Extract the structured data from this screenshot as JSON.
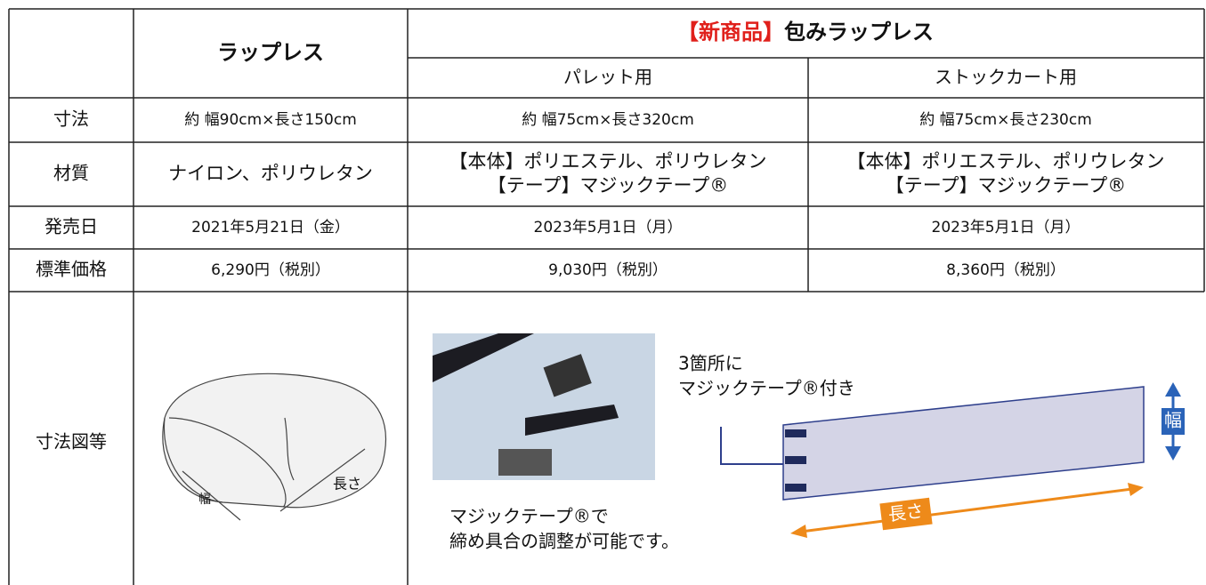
{
  "table": {
    "header": {
      "product1": "ラップレス",
      "new_tag": "【新商品】",
      "product2": "包みラップレス",
      "variant1": "パレット用",
      "variant2": "ストックカート用"
    },
    "rows": [
      {
        "label": "寸法",
        "cells": [
          "約 幅90cm×長さ150cm",
          "約 幅75cm×長さ320cm",
          "約 幅75cm×長さ230cm"
        ]
      },
      {
        "label": "材質",
        "cells": [
          [
            "ナイロン、ポリウレタン"
          ],
          [
            "【本体】ポリエステル、ポリウレタン",
            "【テープ】マジックテープ®"
          ],
          [
            "【本体】ポリエステル、ポリウレタン",
            "【テープ】マジックテープ®"
          ]
        ]
      },
      {
        "label": "発売日",
        "cells": [
          "2021年5月21日（金）",
          "2023年5月1日（月）",
          "2023年5月1日（月）"
        ]
      },
      {
        "label": "標準価格",
        "cells": [
          "6,290円（税別）",
          "9,030円（税別）",
          "8,360円（税別）"
        ]
      }
    ],
    "figure": {
      "label": "寸法図等",
      "pillow_width": "幅",
      "pillow_length": "長さ",
      "note1": [
        "3箇所に",
        "マジックテープ®付き"
      ],
      "note2": [
        "マジックテープ®で",
        "締め具合の調整が可能です。"
      ],
      "width_label": "幅",
      "length_label": "長さ"
    }
  }
}
